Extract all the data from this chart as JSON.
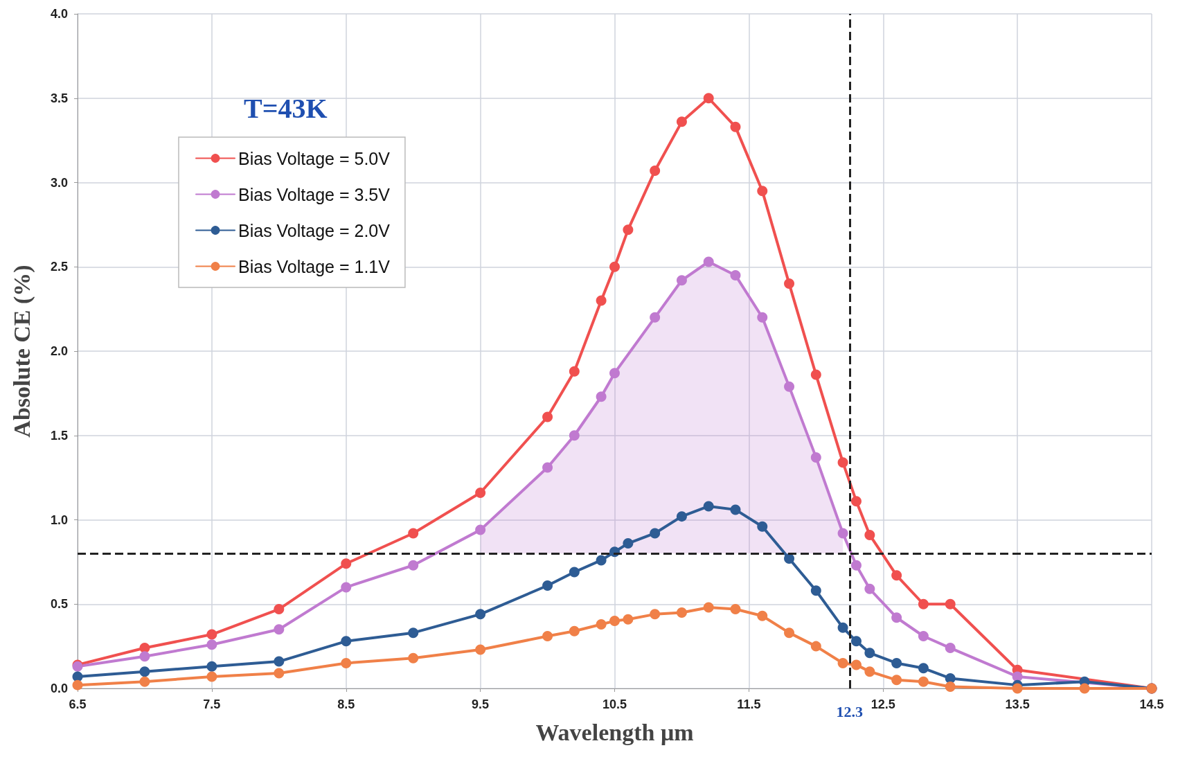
{
  "chart_data": {
    "type": "line",
    "xlabel": "Wavelength μm",
    "ylabel": "Absolute CE (%)",
    "annotations": [
      "T=43K"
    ],
    "xlim": [
      6.5,
      14.5
    ],
    "xticks": [
      6.5,
      7.5,
      8.5,
      9.5,
      10.5,
      11.5,
      12.5,
      13.5,
      14.5
    ],
    "ylim": [
      0,
      4
    ],
    "yticks": [
      {
        "value": 0,
        "label": "0.0"
      },
      0.5,
      {
        "value": 1,
        "label": "1.0"
      },
      1.5,
      {
        "value": 2,
        "label": "2.0"
      },
      2.5,
      {
        "value": 3,
        "label": "3.0"
      },
      3.5,
      {
        "value": 4,
        "label": "4.0"
      }
    ],
    "grid": true,
    "legend": "top left",
    "marker": "circle",
    "line_style": "solid",
    "ref_lines": [
      {
        "axis": "y",
        "value": 0.8,
        "color": "#222222",
        "line_style": "dashed"
      },
      {
        "axis": "x",
        "value": 12.25,
        "label": "12.3",
        "color": "#222222",
        "line_style": "dashed"
      }
    ],
    "series": [
      {
        "name": "Bias Voltage = 5.0V",
        "color": "#f0504f",
        "x": [
          6.5,
          7.0,
          7.5,
          8.0,
          8.5,
          9.0,
          9.5,
          10.0,
          10.2,
          10.4,
          10.5,
          10.6,
          10.8,
          11.0,
          11.2,
          11.4,
          11.6,
          11.8,
          12.0,
          12.2,
          12.3,
          12.4,
          12.6,
          12.8,
          13.0,
          13.5,
          14.5
        ],
        "values": [
          0.14,
          0.24,
          0.32,
          0.47,
          0.74,
          0.92,
          1.16,
          1.61,
          1.88,
          2.3,
          2.5,
          2.72,
          3.07,
          3.36,
          3.5,
          3.33,
          2.95,
          2.4,
          1.86,
          1.34,
          1.11,
          0.91,
          0.67,
          0.5,
          0.5,
          0.11,
          0.0
        ]
      },
      {
        "name": "Bias Voltage = 3.5V",
        "color": "#c07ad0",
        "x": [
          6.5,
          7.0,
          7.5,
          8.0,
          8.5,
          9.0,
          9.5,
          10.0,
          10.2,
          10.4,
          10.5,
          10.8,
          11.0,
          11.2,
          11.4,
          11.6,
          11.8,
          12.0,
          12.2,
          12.3,
          12.4,
          12.6,
          12.8,
          13.0,
          13.5,
          14.5
        ],
        "values": [
          0.13,
          0.19,
          0.26,
          0.35,
          0.6,
          0.73,
          0.94,
          1.31,
          1.5,
          1.73,
          1.87,
          2.2,
          2.42,
          2.53,
          2.45,
          2.2,
          1.79,
          1.37,
          0.92,
          0.73,
          0.59,
          0.42,
          0.31,
          0.24,
          0.07,
          0.0
        ],
        "lower": [
          null,
          null,
          null,
          null,
          null,
          null,
          0.8,
          0.8,
          0.8,
          0.8,
          0.8,
          0.8,
          0.8,
          0.8,
          0.8,
          0.8,
          0.8,
          0.8,
          0.8,
          null,
          null,
          null,
          null,
          null,
          null,
          null
        ],
        "upper": [
          null,
          null,
          null,
          null,
          null,
          null,
          0.94,
          1.31,
          1.5,
          1.73,
          1.87,
          2.2,
          2.42,
          2.53,
          2.45,
          2.2,
          1.79,
          1.37,
          0.92,
          null,
          null,
          null,
          null,
          null,
          null,
          null
        ]
      },
      {
        "name": "Bias Voltage = 2.0V",
        "color": "#2e5c94",
        "x": [
          6.5,
          7.0,
          7.5,
          8.0,
          8.5,
          9.0,
          9.5,
          10.0,
          10.2,
          10.4,
          10.5,
          10.6,
          10.8,
          11.0,
          11.2,
          11.4,
          11.6,
          11.8,
          12.0,
          12.2,
          12.3,
          12.4,
          12.6,
          12.8,
          13.0,
          13.5,
          14.0,
          14.5
        ],
        "values": [
          0.07,
          0.1,
          0.13,
          0.16,
          0.28,
          0.33,
          0.44,
          0.61,
          0.69,
          0.76,
          0.81,
          0.86,
          0.92,
          1.02,
          1.08,
          1.06,
          0.96,
          0.77,
          0.58,
          0.36,
          0.28,
          0.21,
          0.15,
          0.12,
          0.06,
          0.02,
          0.04,
          0.0
        ]
      },
      {
        "name": "Bias Voltage = 1.1V",
        "color": "#f08048",
        "x": [
          6.5,
          7.0,
          7.5,
          8.0,
          8.5,
          9.0,
          9.5,
          10.0,
          10.2,
          10.4,
          10.5,
          10.6,
          10.8,
          11.0,
          11.2,
          11.4,
          11.6,
          11.8,
          12.0,
          12.2,
          12.3,
          12.4,
          12.6,
          12.8,
          13.0,
          13.5,
          14.0,
          14.5
        ],
        "values": [
          0.02,
          0.04,
          0.07,
          0.09,
          0.15,
          0.18,
          0.23,
          0.31,
          0.34,
          0.38,
          0.4,
          0.41,
          0.44,
          0.45,
          0.48,
          0.47,
          0.43,
          0.33,
          0.25,
          0.15,
          0.14,
          0.1,
          0.05,
          0.04,
          0.01,
          0.0,
          0.0,
          0.0
        ]
      }
    ]
  }
}
